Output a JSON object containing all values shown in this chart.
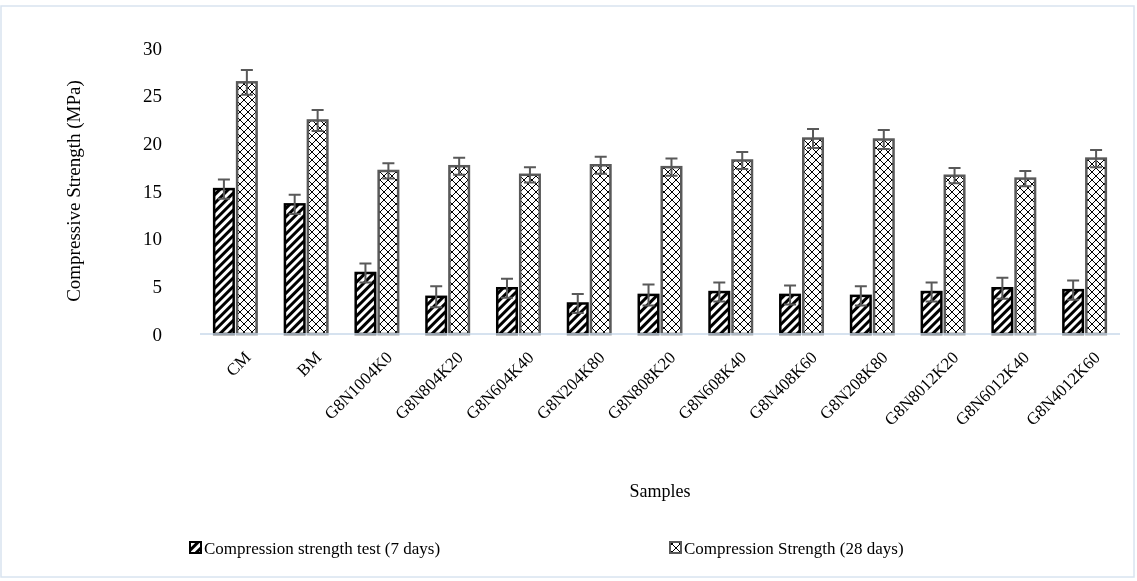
{
  "chart_data": {
    "type": "bar",
    "xlabel": "Samples",
    "ylabel": "Compressive Strength (MPa)",
    "categories": [
      "CM",
      "BM",
      "G8N1004K0",
      "G8N804K20",
      "G8N604K40",
      "G8N204K80",
      "G8N808K20",
      "G8N608K40",
      "G8N408K60",
      "G8N208K80",
      "G8N8012K20",
      "G8N6012K40",
      "G8N4012K60"
    ],
    "series": [
      {
        "name": "Compression strength test (7 days)",
        "color": "#000000",
        "values": [
          15.2,
          13.6,
          6.4,
          3.9,
          4.8,
          3.2,
          4.1,
          4.4,
          4.1,
          4.0,
          4.4,
          4.8,
          4.6
        ],
        "errors": [
          1.0,
          1.0,
          1.0,
          1.1,
          1.0,
          1.0,
          1.1,
          1.0,
          1.0,
          1.0,
          1.0,
          1.1,
          1.0
        ]
      },
      {
        "name": "Compression Strength (28 days)",
        "color": "#595959",
        "values": [
          26.4,
          22.4,
          17.1,
          17.6,
          16.7,
          17.7,
          17.5,
          18.2,
          20.5,
          20.4,
          16.6,
          16.3,
          18.4
        ],
        "errors": [
          1.3,
          1.1,
          0.8,
          0.9,
          0.8,
          0.9,
          0.9,
          0.9,
          1.0,
          1.0,
          0.8,
          0.8,
          0.9
        ]
      }
    ],
    "ylim": [
      0,
      30
    ],
    "yticks": [
      0,
      5,
      10,
      15,
      20,
      25,
      30
    ],
    "legend": "bottom"
  }
}
